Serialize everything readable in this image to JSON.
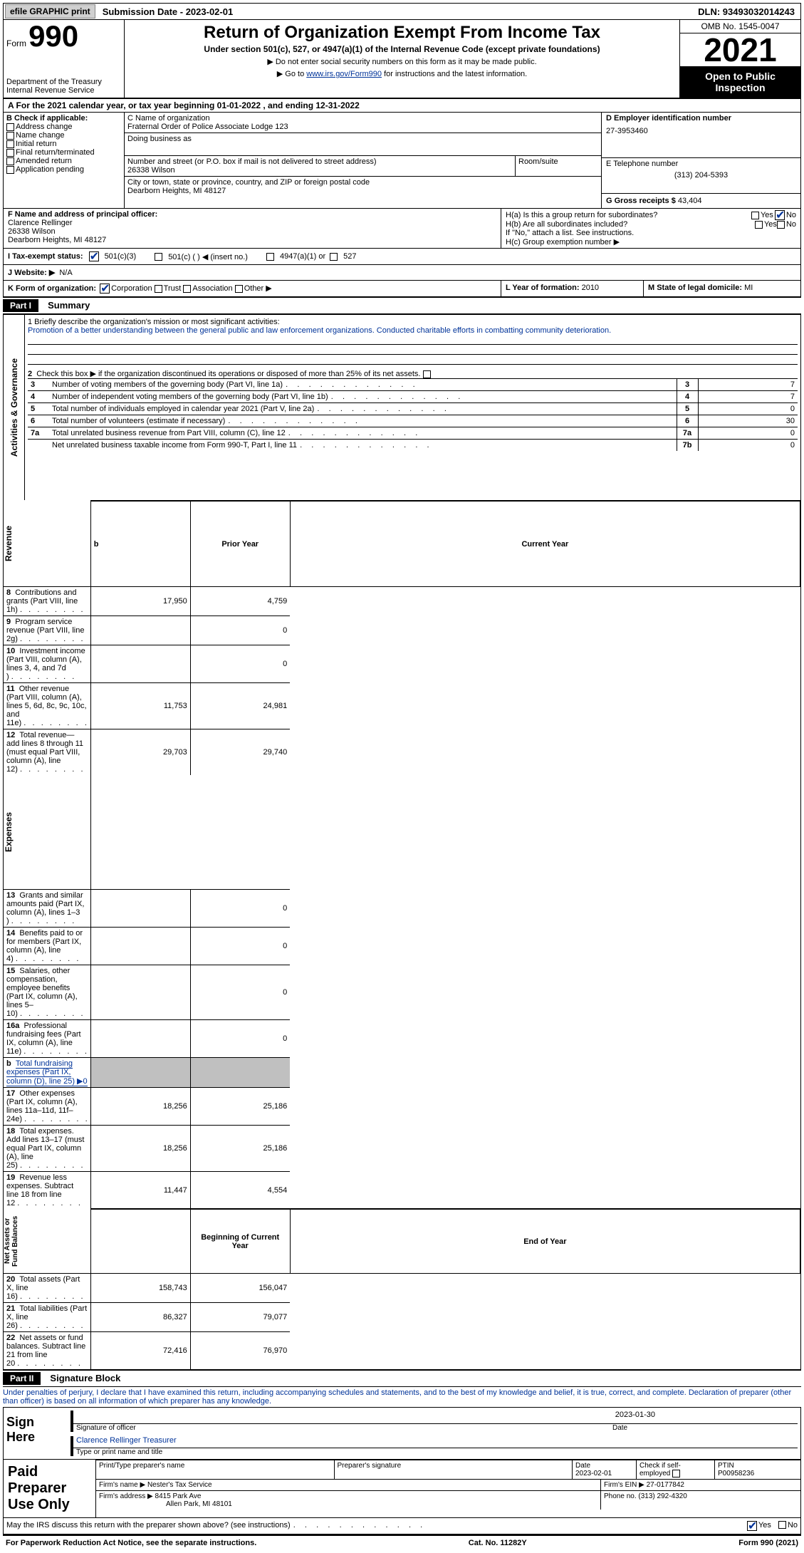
{
  "topbar": {
    "efile_btn": "efile GRAPHIC print",
    "submission_label": "Submission Date - 2023-02-01",
    "dln_label": "DLN: 93493032014243"
  },
  "header": {
    "form_word": "Form",
    "form_number": "990",
    "dept": "Department of the Treasury",
    "irs": "Internal Revenue Service",
    "title": "Return of Organization Exempt From Income Tax",
    "subtitle": "Under section 501(c), 527, or 4947(a)(1) of the Internal Revenue Code (except private foundations)",
    "note1": "▶ Do not enter social security numbers on this form as it may be made public.",
    "note2_pre": "▶ Go to ",
    "note2_link": "www.irs.gov/Form990",
    "note2_post": " for instructions and the latest information.",
    "omb": "OMB No. 1545-0047",
    "year": "2021",
    "inspection": "Open to Public Inspection"
  },
  "lineA": "A For the 2021 calendar year, or tax year beginning 01-01-2022    , and ending 12-31-2022",
  "boxB": {
    "label": "B Check if applicable:",
    "opts": [
      "Address change",
      "Name change",
      "Initial return",
      "Final return/terminated",
      "Amended return",
      "Application pending"
    ]
  },
  "boxC": {
    "name_label": "C Name of organization",
    "name": "Fraternal Order of Police Associate Lodge 123",
    "dba_label": "Doing business as",
    "street_label": "Number and street (or P.O. box if mail is not delivered to street address)",
    "room_label": "Room/suite",
    "street": "26338 Wilson",
    "city_label": "City or town, state or province, country, and ZIP or foreign postal code",
    "city": "Dearborn Heights, MI  48127"
  },
  "boxD": {
    "label": "D Employer identification number",
    "value": "27-3953460"
  },
  "boxE": {
    "label": "E Telephone number",
    "value": "(313) 204-5393"
  },
  "boxG": {
    "label": "G Gross receipts $",
    "value": "43,404"
  },
  "boxF": {
    "label": "F  Name and address of principal officer:",
    "name": "Clarence Rellinger",
    "street": "26338 Wilson",
    "city": "Dearborn Heights, MI  48127"
  },
  "boxH": {
    "a": "H(a)  Is this a group return for subordinates?",
    "b": "H(b)  Are all subordinates included?",
    "note": "If \"No,\" attach a list. See instructions.",
    "c": "H(c)  Group exemption number ▶",
    "yes": "Yes",
    "no": "No"
  },
  "boxI": {
    "label": "I   Tax-exempt status:",
    "o1": "501(c)(3)",
    "o2": "501(c) (  ) ◀ (insert no.)",
    "o3": "4947(a)(1) or",
    "o4": "527"
  },
  "boxJ": {
    "label": "J   Website: ▶",
    "value": "N/A"
  },
  "boxK": {
    "label": "K Form of organization:",
    "o1": "Corporation",
    "o2": "Trust",
    "o3": "Association",
    "o4": "Other ▶"
  },
  "boxL": {
    "label": "L Year of formation:",
    "value": "2010"
  },
  "boxM": {
    "label": "M State of legal domicile:",
    "value": "MI"
  },
  "part1": {
    "hdr": "Part I",
    "title": "Summary"
  },
  "mission": {
    "label": "1   Briefly describe the organization's mission or most significant activities:",
    "text": "Promotion of a better understanding between the general public and law enforcement organizations. Conducted charitable efforts in combatting community deterioration."
  },
  "line2": "Check this box ▶        if the organization discontinued its operations or disposed of more than 25% of its net assets.",
  "governance_label": "Activities & Governance",
  "revenue_label": "Revenue",
  "expenses_label": "Expenses",
  "netassets_label": "Net Assets or Fund Balances",
  "prior_year": "Prior Year",
  "current_year": "Current Year",
  "begin_year": "Beginning of Current Year",
  "end_year": "End of Year",
  "rows_gov": [
    {
      "n": "3",
      "t": "Number of voting members of the governing body (Part VI, line 1a)",
      "box": "3",
      "v": "7"
    },
    {
      "n": "4",
      "t": "Number of independent voting members of the governing body (Part VI, line 1b)",
      "box": "4",
      "v": "7"
    },
    {
      "n": "5",
      "t": "Total number of individuals employed in calendar year 2021 (Part V, line 2a)",
      "box": "5",
      "v": "0"
    },
    {
      "n": "6",
      "t": "Total number of volunteers (estimate if necessary)",
      "box": "6",
      "v": "30"
    },
    {
      "n": "7a",
      "t": "Total unrelated business revenue from Part VIII, column (C), line 12",
      "box": "7a",
      "v": "0"
    },
    {
      "n": "",
      "t": "Net unrelated business taxable income from Form 990-T, Part I, line 11",
      "box": "7b",
      "v": "0"
    }
  ],
  "rows_rev": [
    {
      "n": "8",
      "t": "Contributions and grants (Part VIII, line 1h)",
      "p": "17,950",
      "c": "4,759"
    },
    {
      "n": "9",
      "t": "Program service revenue (Part VIII, line 2g)",
      "p": "",
      "c": "0"
    },
    {
      "n": "10",
      "t": "Investment income (Part VIII, column (A), lines 3, 4, and 7d )",
      "p": "",
      "c": "0"
    },
    {
      "n": "11",
      "t": "Other revenue (Part VIII, column (A), lines 5, 6d, 8c, 9c, 10c, and 11e)",
      "p": "11,753",
      "c": "24,981"
    },
    {
      "n": "12",
      "t": "Total revenue—add lines 8 through 11 (must equal Part VIII, column (A), line 12)",
      "p": "29,703",
      "c": "29,740"
    }
  ],
  "rows_exp": [
    {
      "n": "13",
      "t": "Grants and similar amounts paid (Part IX, column (A), lines 1–3 )",
      "p": "",
      "c": "0"
    },
    {
      "n": "14",
      "t": "Benefits paid to or for members (Part IX, column (A), line 4)",
      "p": "",
      "c": "0"
    },
    {
      "n": "15",
      "t": "Salaries, other compensation, employee benefits (Part IX, column (A), lines 5–10)",
      "p": "",
      "c": "0"
    },
    {
      "n": "16a",
      "t": "Professional fundraising fees (Part IX, column (A), line 11e)",
      "p": "",
      "c": "0"
    },
    {
      "n": "b",
      "t": "Total fundraising expenses (Part IX, column (D), line 25) ▶0",
      "p": "grey",
      "c": "grey",
      "special": true
    },
    {
      "n": "17",
      "t": "Other expenses (Part IX, column (A), lines 11a–11d, 11f–24e)",
      "p": "18,256",
      "c": "25,186"
    },
    {
      "n": "18",
      "t": "Total expenses. Add lines 13–17 (must equal Part IX, column (A), line 25)",
      "p": "18,256",
      "c": "25,186"
    },
    {
      "n": "19",
      "t": "Revenue less expenses. Subtract line 18 from line 12",
      "p": "11,447",
      "c": "4,554"
    }
  ],
  "rows_net": [
    {
      "n": "20",
      "t": "Total assets (Part X, line 16)",
      "p": "158,743",
      "c": "156,047"
    },
    {
      "n": "21",
      "t": "Total liabilities (Part X, line 26)",
      "p": "86,327",
      "c": "79,077"
    },
    {
      "n": "22",
      "t": "Net assets or fund balances. Subtract line 21 from line 20",
      "p": "72,416",
      "c": "76,970"
    }
  ],
  "part2": {
    "hdr": "Part II",
    "title": "Signature Block"
  },
  "penalties": "Under penalties of perjury, I declare that I have examined this return, including accompanying schedules and statements, and to the best of my knowledge and belief, it is true, correct, and complete. Declaration of preparer (other than officer) is based on all information of which preparer has any knowledge.",
  "sign_here": "Sign Here",
  "sig_officer": "Signature of officer",
  "sig_date_label": "Date",
  "sig_date": "2023-01-30",
  "sig_name": "Clarence Rellinger  Treasurer",
  "sig_name_label": "Type or print name and title",
  "paid_prep": "Paid Preparer Use Only",
  "prep": {
    "name_label": "Print/Type preparer's name",
    "sig_label": "Preparer's signature",
    "date_label": "Date",
    "date": "2023-02-01",
    "check_label": "Check         if self-employed",
    "ptin_label": "PTIN",
    "ptin": "P00958236",
    "firm_name_label": "Firm's name    ▶",
    "firm_name": "Nester's Tax Service",
    "firm_ein_label": "Firm's EIN ▶",
    "firm_ein": "27-0177842",
    "firm_addr_label": "Firm's address ▶",
    "firm_addr1": "8415 Park Ave",
    "firm_addr2": "Allen Park, MI  48101",
    "phone_label": "Phone no.",
    "phone": "(313) 292-4320"
  },
  "may_irs": "May the IRS discuss this return with the preparer shown above? (see instructions)",
  "paperwork": "For Paperwork Reduction Act Notice, see the separate instructions.",
  "cat": "Cat. No. 11282Y",
  "form_foot": "Form 990 (2021)"
}
